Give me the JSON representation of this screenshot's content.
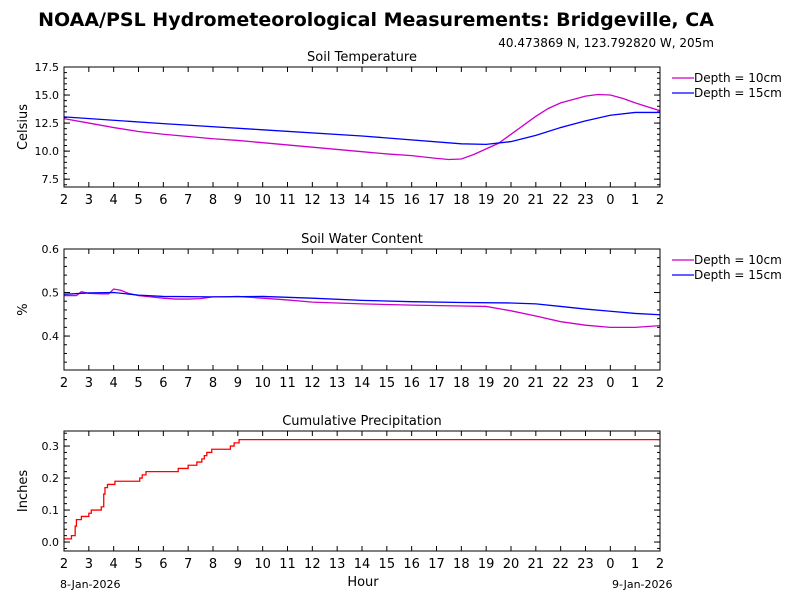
{
  "title": "NOAA/PSL Hydrometeorological Measurements: Bridgeville, CA",
  "location": "40.473869 N, 123.792820 W, 205m",
  "start_date": "8-Jan-2026",
  "end_date": "9-Jan-2026",
  "xlabel": "Hour",
  "x_tick_labels": [
    "2",
    "3",
    "4",
    "5",
    "6",
    "7",
    "8",
    "9",
    "10",
    "11",
    "12",
    "13",
    "14",
    "15",
    "16",
    "17",
    "18",
    "19",
    "20",
    "21",
    "22",
    "23",
    "0",
    "1",
    "2"
  ],
  "chart_data": [
    {
      "type": "line",
      "title": "Soil Temperature",
      "ylabel": "Celsius",
      "xlabel": "Hour",
      "x_unit": "hours since 02:00 8-Jan-2026",
      "xlim": [
        0,
        24
      ],
      "ylim": [
        6.8,
        17.5
      ],
      "yticks": [
        7.5,
        10.0,
        12.5,
        15.0,
        17.5
      ],
      "ytick_labels": [
        "7.5",
        "10.0",
        "12.5",
        "15.0",
        "17.5"
      ],
      "legend": "outside-right",
      "series": [
        {
          "name": "Depth = 10cm",
          "color": "#cc00cc",
          "x": [
            0,
            1,
            2,
            3,
            4,
            5,
            6,
            7,
            8,
            9,
            10,
            11,
            12,
            13,
            14,
            15,
            15.5,
            16,
            16.5,
            17,
            17.5,
            18,
            18.5,
            19,
            19.5,
            20,
            20.5,
            21,
            21.5,
            22,
            22.5,
            23,
            24
          ],
          "y": [
            12.9,
            12.5,
            12.1,
            11.75,
            11.5,
            11.3,
            11.1,
            10.95,
            10.75,
            10.55,
            10.35,
            10.15,
            9.95,
            9.75,
            9.6,
            9.35,
            9.25,
            9.3,
            9.7,
            10.2,
            10.7,
            11.5,
            12.3,
            13.1,
            13.8,
            14.3,
            14.6,
            14.9,
            15.05,
            15.0,
            14.7,
            14.3,
            13.6
          ]
        },
        {
          "name": "Depth = 15cm",
          "color": "#0000ff",
          "x": [
            0,
            4,
            8,
            12,
            16,
            17,
            18,
            19,
            20,
            21,
            22,
            23,
            24
          ],
          "y": [
            13.05,
            12.45,
            11.9,
            11.35,
            10.65,
            10.6,
            10.85,
            11.4,
            12.1,
            12.7,
            13.2,
            13.45,
            13.45
          ]
        }
      ]
    },
    {
      "type": "line",
      "title": "Soil Water Content",
      "ylabel": "%",
      "xlabel": "Hour",
      "x_unit": "hours since 02:00 8-Jan-2026",
      "xlim": [
        0,
        24
      ],
      "ylim": [
        0.322,
        0.6
      ],
      "yticks": [
        0.4,
        0.5,
        0.6
      ],
      "ytick_labels": [
        "0.4",
        "0.5",
        "0.6"
      ],
      "legend": "outside-right",
      "series": [
        {
          "name": "Depth = 10cm",
          "color": "#cc00cc",
          "x": [
            0,
            0.5,
            0.7,
            1,
            1.5,
            1.8,
            2,
            2.3,
            2.6,
            3,
            3.5,
            4,
            4.5,
            5,
            5.5,
            6,
            6.5,
            7,
            8,
            9,
            10,
            12,
            14,
            16,
            17,
            17.5,
            18,
            19,
            20,
            21,
            22,
            23,
            24
          ],
          "y": [
            0.493,
            0.493,
            0.502,
            0.498,
            0.497,
            0.497,
            0.508,
            0.505,
            0.498,
            0.493,
            0.49,
            0.487,
            0.485,
            0.485,
            0.486,
            0.49,
            0.49,
            0.491,
            0.487,
            0.483,
            0.478,
            0.474,
            0.471,
            0.469,
            0.468,
            0.463,
            0.458,
            0.446,
            0.433,
            0.425,
            0.42,
            0.42,
            0.424
          ]
        },
        {
          "name": "Depth = 15cm",
          "color": "#0000ff",
          "x": [
            0,
            1,
            2,
            3,
            4,
            6,
            8,
            10,
            12,
            14,
            16,
            18,
            19,
            20,
            21,
            22,
            23,
            24
          ],
          "y": [
            0.496,
            0.499,
            0.5,
            0.494,
            0.491,
            0.49,
            0.491,
            0.487,
            0.482,
            0.479,
            0.477,
            0.476,
            0.474,
            0.468,
            0.462,
            0.457,
            0.452,
            0.449
          ]
        }
      ]
    },
    {
      "type": "line",
      "title": "Cumulative Precipitation",
      "ylabel": "Inches",
      "xlabel": "Hour",
      "x_unit": "hours since 02:00 8-Jan-2026",
      "xlim": [
        0,
        24
      ],
      "ylim": [
        -0.028,
        0.347
      ],
      "yticks": [
        0.0,
        0.1,
        0.2,
        0.3
      ],
      "ytick_labels": [
        "0.0",
        "0.1",
        "0.2",
        "0.3"
      ],
      "legend": "none",
      "series": [
        {
          "name": "Precipitation",
          "color": "#ff0000",
          "step": true,
          "x": [
            0,
            0.3,
            0.45,
            0.5,
            0.7,
            1.0,
            1.1,
            1.5,
            1.6,
            1.65,
            1.75,
            2.05,
            3.0,
            3.05,
            3.15,
            3.3,
            4.6,
            5.0,
            5.35,
            5.55,
            5.65,
            5.75,
            5.95,
            6.7,
            6.85,
            7.05,
            24
          ],
          "y": [
            0.01,
            0.02,
            0.05,
            0.07,
            0.08,
            0.09,
            0.1,
            0.11,
            0.15,
            0.17,
            0.18,
            0.19,
            0.19,
            0.2,
            0.21,
            0.22,
            0.23,
            0.24,
            0.25,
            0.26,
            0.27,
            0.28,
            0.29,
            0.3,
            0.31,
            0.32,
            0.32
          ]
        }
      ]
    }
  ]
}
